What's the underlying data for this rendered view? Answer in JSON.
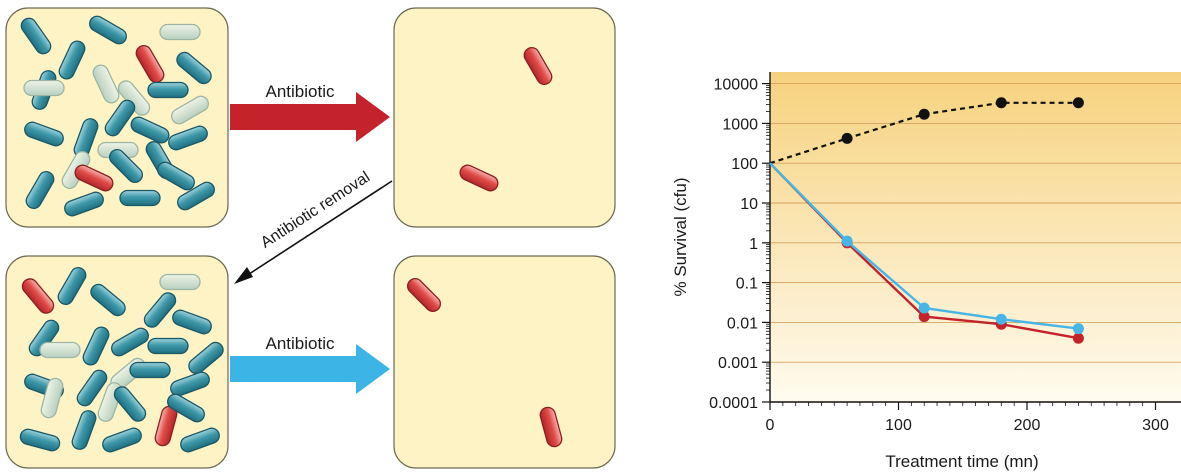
{
  "colors": {
    "panel_fill": "#fdf3c4",
    "panel_stroke": "#6e6a52",
    "cell_teal": "#2a8a99",
    "cell_faded": "#c8dcc8",
    "cell_red": "#d63a3a",
    "arrow_red": "#c4232b",
    "arrow_blue": "#3cb4e6",
    "plot_bg_top": "#f6d27e",
    "plot_bg_bottom": "#fffbef",
    "series_black": "#111111",
    "series_red": "#c4232b",
    "series_blue": "#46b6e6"
  },
  "diagram": {
    "arrow_top_label": "Antibiotic",
    "arrow_bottom_label": "Antibiotic",
    "diagonal_label": "Antibiotic removal"
  },
  "chart_data": {
    "type": "line",
    "ylabel": "% Survival (cfu)",
    "xlabel": "Treatment time (mn)",
    "yscale": "log",
    "ylim": [
      0.0001,
      10000
    ],
    "xlim": [
      0,
      300
    ],
    "xticks": [
      "0",
      "100",
      "200",
      "300"
    ],
    "yticks": [
      "10000",
      "1000",
      "100",
      "10",
      "1",
      "0.1",
      "0.01",
      "0.001",
      "0.0001"
    ],
    "gridlines": true,
    "series": [
      {
        "color": "#111111",
        "style": "dashed",
        "x": [
          0,
          60,
          120,
          180,
          240
        ],
        "y": [
          100,
          420,
          1700,
          3300,
          3300
        ]
      },
      {
        "color": "#c4232b",
        "style": "solid",
        "x": [
          0,
          60,
          120,
          180,
          240
        ],
        "y": [
          100,
          1,
          0.014,
          0.009,
          0.004
        ]
      },
      {
        "color": "#46b6e6",
        "style": "solid",
        "x": [
          0,
          60,
          120,
          180,
          240
        ],
        "y": [
          100,
          1.1,
          0.023,
          0.012,
          0.007
        ]
      }
    ]
  }
}
